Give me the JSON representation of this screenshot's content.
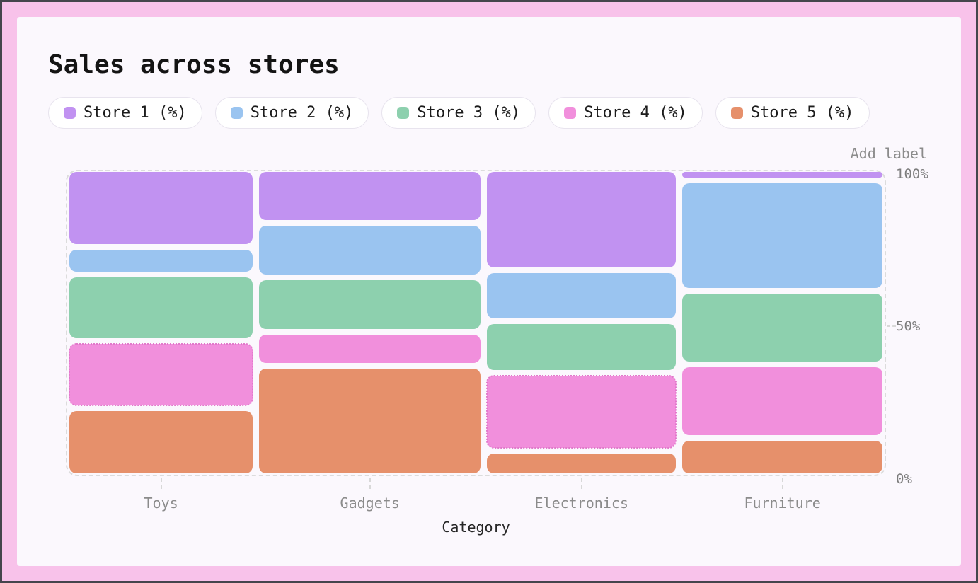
{
  "controls": {
    "add_label": "Add label"
  },
  "colors": {
    "frame": "#f8c2ea",
    "outer_border": "#45454c",
    "panel_bg": "#fbf8fd",
    "pill_bg": "#ffffff",
    "pill_border": "#e8e4ee",
    "plot_border_dashed": "#dcdcdc",
    "muted_text": "#8b8b8b",
    "axis_tick_text": "#7d7d7d",
    "title_text": "#141414",
    "highlight_dotted": "#e279cb"
  },
  "chart_data": {
    "type": "bar",
    "variant": "stacked-100-percent",
    "title": "Sales across stores",
    "xlabel": "Category",
    "ylabel": "",
    "ylim": [
      0,
      100
    ],
    "grid": false,
    "legend_position": "top",
    "categories": [
      "Toys",
      "Gadgets",
      "Electronics",
      "Furniture"
    ],
    "series": [
      {
        "name": "Store 1 (%)",
        "color": "#c192f1",
        "values": [
          25,
          17,
          33,
          3
        ]
      },
      {
        "name": "Store 2 (%)",
        "color": "#9ac4f0",
        "values": [
          9,
          18,
          17,
          36
        ]
      },
      {
        "name": "Store 3 (%)",
        "color": "#8dd0ae",
        "values": [
          22,
          18,
          17,
          24
        ]
      },
      {
        "name": "Store 4 (%)",
        "color": "#f18fdc",
        "values": [
          22,
          11,
          26,
          24
        ]
      },
      {
        "name": "Store 5 (%)",
        "color": "#e6906b",
        "values": [
          22,
          36,
          8,
          12
        ]
      }
    ],
    "column_width_weights": [
      231,
      279,
      238,
      252
    ],
    "y_ticks": [
      {
        "label": "100%",
        "value": 100
      },
      {
        "label": "50%",
        "value": 50
      },
      {
        "label": "0%",
        "value": 0
      }
    ],
    "highlighted_segments": [
      {
        "category": "Toys",
        "series": "Store 4 (%)"
      },
      {
        "category": "Electronics",
        "series": "Store 4 (%)"
      }
    ]
  }
}
